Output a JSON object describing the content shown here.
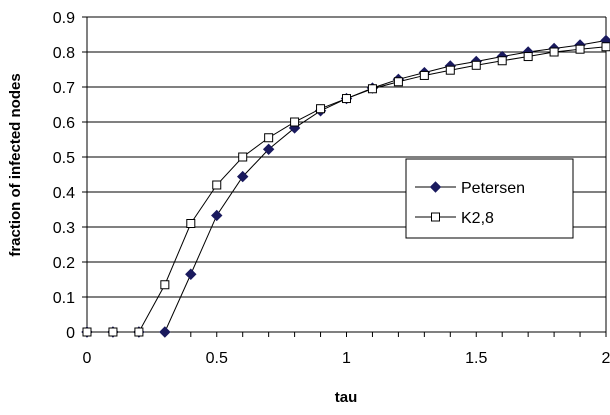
{
  "chart_data": {
    "type": "line",
    "xlabel": "tau",
    "ylabel": "fraction of infected nodes",
    "xlim": [
      0,
      2
    ],
    "ylim": [
      0,
      0.9
    ],
    "x_ticks": [
      "0",
      "0.5",
      "1",
      "1.5",
      "2"
    ],
    "y_ticks": [
      "0",
      "0.1",
      "0.2",
      "0.3",
      "0.4",
      "0.5",
      "0.6",
      "0.7",
      "0.8",
      "0.9"
    ],
    "grid": "horizontal",
    "legend_position": "right",
    "series": [
      {
        "name": "Petersen",
        "marker": "filled-diamond",
        "color": "#1a1a5e",
        "x": [
          0,
          0.1,
          0.2,
          0.3,
          0.4,
          0.5,
          0.6,
          0.7,
          0.8,
          0.9,
          1.0,
          1.1,
          1.2,
          1.3,
          1.4,
          1.5,
          1.6,
          1.7,
          1.8,
          1.9,
          2.0
        ],
        "values": [
          0,
          0,
          0,
          0,
          0.165,
          0.333,
          0.444,
          0.522,
          0.583,
          0.632,
          0.667,
          0.697,
          0.722,
          0.741,
          0.76,
          0.773,
          0.787,
          0.8,
          0.81,
          0.82,
          0.833
        ]
      },
      {
        "name": "K2,8",
        "marker": "open-square",
        "color": "#000000",
        "x": [
          0,
          0.1,
          0.2,
          0.3,
          0.4,
          0.5,
          0.6,
          0.7,
          0.8,
          0.9,
          1.0,
          1.1,
          1.2,
          1.3,
          1.4,
          1.5,
          1.6,
          1.7,
          1.8,
          1.9,
          2.0
        ],
        "values": [
          0,
          0,
          0,
          0.135,
          0.31,
          0.42,
          0.5,
          0.555,
          0.6,
          0.638,
          0.667,
          0.695,
          0.715,
          0.733,
          0.748,
          0.762,
          0.775,
          0.787,
          0.8,
          0.808,
          0.815
        ]
      }
    ]
  }
}
